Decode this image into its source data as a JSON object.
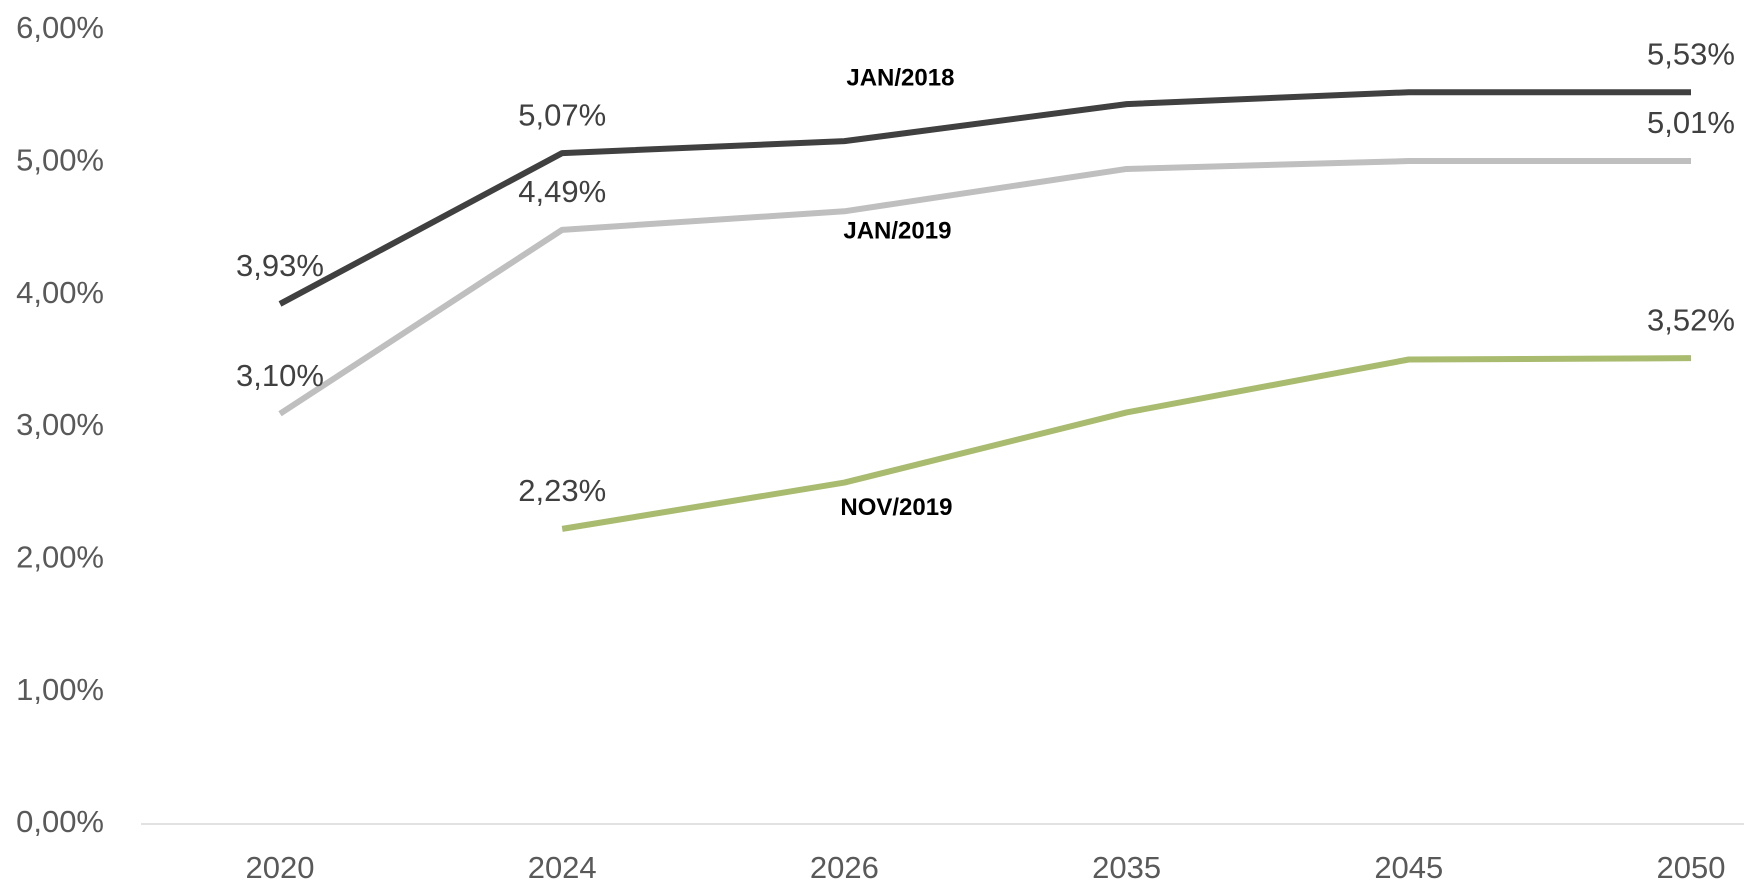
{
  "chart_data": {
    "type": "line",
    "categories": [
      "2020",
      "2024",
      "2026",
      "2035",
      "2045",
      "2050"
    ],
    "series": [
      {
        "name": "JAN/2018",
        "color": "#404040",
        "values": [
          3.93,
          5.07,
          5.16,
          5.44,
          5.53,
          5.53
        ],
        "value_labels": [
          "3,93%",
          "5,07%",
          null,
          null,
          null,
          "5,53%"
        ]
      },
      {
        "name": "JAN/2019",
        "color": "#bfbfbf",
        "values": [
          3.1,
          4.49,
          4.63,
          4.95,
          5.01,
          5.01
        ],
        "value_labels": [
          "3,10%",
          "4,49%",
          null,
          null,
          null,
          "5,01%"
        ]
      },
      {
        "name": "NOV/2019",
        "color": "#a9bb6e",
        "values": [
          null,
          2.23,
          2.58,
          3.11,
          3.51,
          3.52
        ],
        "value_labels": [
          null,
          "2,23%",
          null,
          null,
          null,
          "3,52%"
        ]
      }
    ],
    "ylim": [
      0,
      6
    ],
    "yticks": [
      {
        "value": 0,
        "label": "0,00%"
      },
      {
        "value": 1,
        "label": "1,00%"
      },
      {
        "value": 2,
        "label": "2,00%"
      },
      {
        "value": 3,
        "label": "3,00%"
      },
      {
        "value": 4,
        "label": "4,00%"
      },
      {
        "value": 5,
        "label": "5,00%"
      },
      {
        "value": 6,
        "label": "6,00%"
      }
    ],
    "grid": false
  }
}
